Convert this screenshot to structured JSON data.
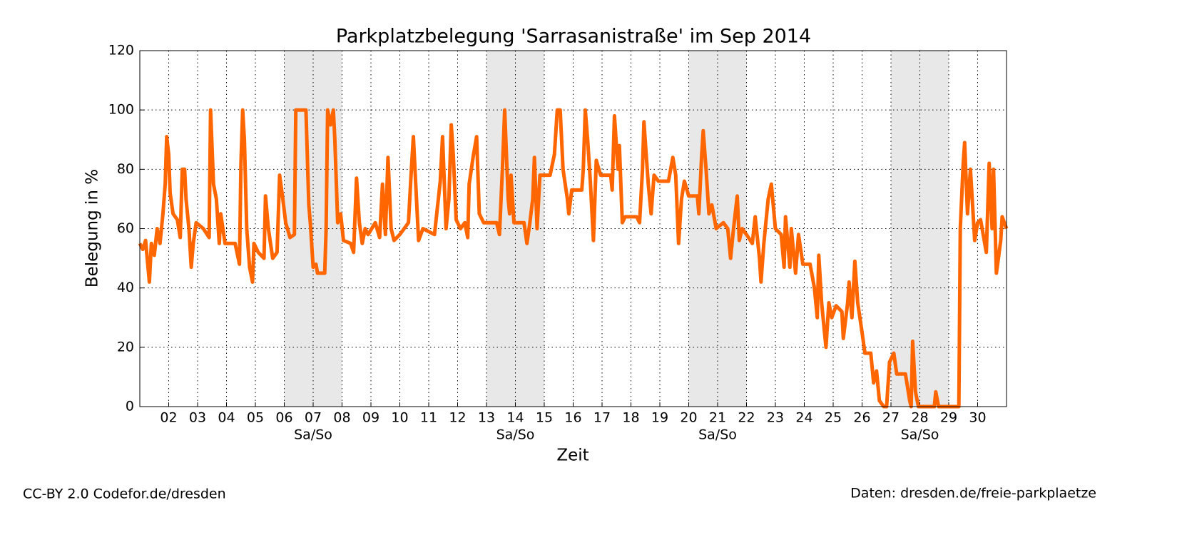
{
  "chart_data": {
    "type": "line",
    "title": "Parkplatzbelegung 'Sarrasanistraße' im Sep 2014",
    "xlabel": "Zeit",
    "ylabel": "Belegung in %",
    "color": "#ff6600",
    "grid": true,
    "xlim": [
      1,
      31
    ],
    "ylim": [
      0,
      120
    ],
    "yticks": [
      0,
      20,
      40,
      60,
      80,
      100,
      120
    ],
    "xticks": [
      {
        "value": 2,
        "label": "02"
      },
      {
        "value": 3,
        "label": "03"
      },
      {
        "value": 4,
        "label": "04"
      },
      {
        "value": 5,
        "label": "05"
      },
      {
        "value": 6,
        "label": "06"
      },
      {
        "value": 7,
        "label": "07"
      },
      {
        "value": 8,
        "label": "08"
      },
      {
        "value": 9,
        "label": "09"
      },
      10,
      11,
      12,
      13,
      14,
      15,
      16,
      17,
      18,
      19,
      20,
      21,
      22,
      23,
      24,
      25,
      26,
      27,
      28,
      29,
      30
    ],
    "weekend_bands": [
      {
        "start": 6,
        "end": 8,
        "label": "Sa/So"
      },
      {
        "start": 13,
        "end": 15,
        "label": "Sa/So"
      },
      {
        "start": 20,
        "end": 22,
        "label": "Sa/So"
      },
      {
        "start": 27,
        "end": 29,
        "label": "Sa/So"
      }
    ],
    "x": [
      1.0,
      1.1,
      1.2,
      1.33,
      1.4,
      1.5,
      1.6,
      1.7,
      1.8,
      1.88,
      1.93,
      2.0,
      2.05,
      2.15,
      2.3,
      2.4,
      2.47,
      2.55,
      2.6,
      2.7,
      2.78,
      2.85,
      2.95,
      3.2,
      3.4,
      3.45,
      3.55,
      3.65,
      3.75,
      3.8,
      3.95,
      4.3,
      4.45,
      4.5,
      4.56,
      4.62,
      4.7,
      4.8,
      4.9,
      4.95,
      5.1,
      5.3,
      5.35,
      5.45,
      5.6,
      5.75,
      5.84,
      5.95,
      6.05,
      6.2,
      6.35,
      6.4,
      6.75,
      6.85,
      6.9,
      7.0,
      7.1,
      7.15,
      7.4,
      7.45,
      7.5,
      7.6,
      7.7,
      7.75,
      7.85,
      7.95,
      8.05,
      8.3,
      8.4,
      8.5,
      8.6,
      8.7,
      8.8,
      8.9,
      9.15,
      9.3,
      9.4,
      9.5,
      9.59,
      9.7,
      9.8,
      10.0,
      10.3,
      10.4,
      10.47,
      10.55,
      10.65,
      10.8,
      11.2,
      11.4,
      11.48,
      11.6,
      11.7,
      11.78,
      11.85,
      11.95,
      12.1,
      12.25,
      12.35,
      12.4,
      12.55,
      12.66,
      12.75,
      12.9,
      13.35,
      13.45,
      13.55,
      13.63,
      13.75,
      13.8,
      13.85,
      13.95,
      14.3,
      14.4,
      14.5,
      14.6,
      14.66,
      14.75,
      14.85,
      15.2,
      15.35,
      15.45,
      15.55,
      15.65,
      15.8,
      15.85,
      15.95,
      16.3,
      16.35,
      16.42,
      16.5,
      16.6,
      16.7,
      16.8,
      16.95,
      17.3,
      17.35,
      17.43,
      17.55,
      17.6,
      17.7,
      17.8,
      18.2,
      18.3,
      18.4,
      18.45,
      18.6,
      18.7,
      18.8,
      18.95,
      19.3,
      19.45,
      19.55,
      19.65,
      19.75,
      19.85,
      20.0,
      20.3,
      20.35,
      20.45,
      20.5,
      20.6,
      20.7,
      20.8,
      20.95,
      21.2,
      21.35,
      21.45,
      21.55,
      21.68,
      21.75,
      21.85,
      22.0,
      22.2,
      22.3,
      22.45,
      22.5,
      22.6,
      22.75,
      22.86,
      23.0,
      23.2,
      23.3,
      23.35,
      23.5,
      23.55,
      23.7,
      23.8,
      23.95,
      24.2,
      24.35,
      24.45,
      24.5,
      24.6,
      24.75,
      24.85,
      24.95,
      25.1,
      25.3,
      25.35,
      25.5,
      25.55,
      25.65,
      25.75,
      25.85,
      26.0,
      26.1,
      26.3,
      26.4,
      26.5,
      26.6,
      26.75,
      26.85,
      26.95,
      27.1,
      27.2,
      27.5,
      27.65,
      27.7,
      27.75,
      27.85,
      27.95,
      28.5,
      28.55,
      28.65,
      29.35,
      29.4,
      29.5,
      29.55,
      29.65,
      29.75,
      29.9,
      30.0,
      30.1,
      30.3,
      30.4,
      30.5,
      30.55,
      30.65,
      30.8,
      30.85,
      31.0
    ],
    "values": [
      55,
      53,
      56,
      42,
      55,
      51,
      60,
      55,
      65,
      75,
      91,
      85,
      72,
      65,
      63,
      57,
      80,
      80,
      70,
      60,
      47,
      55,
      62,
      60,
      57,
      100,
      75,
      70,
      55,
      65,
      55,
      55,
      48,
      82,
      100,
      90,
      60,
      47,
      42,
      55,
      52,
      50,
      71,
      60,
      50,
      52,
      78,
      70,
      62,
      57,
      58,
      100,
      100,
      68,
      62,
      47,
      48,
      45,
      45,
      60,
      100,
      95,
      100,
      90,
      62,
      65,
      56,
      55,
      52,
      77,
      62,
      55,
      60,
      58,
      62,
      57,
      75,
      58,
      84,
      60,
      56,
      58,
      62,
      80,
      91,
      75,
      56,
      60,
      58,
      76,
      91,
      60,
      70,
      95,
      85,
      63,
      60,
      62,
      57,
      75,
      85,
      91,
      65,
      62,
      62,
      58,
      80,
      100,
      70,
      65,
      78,
      62,
      62,
      55,
      62,
      70,
      84,
      60,
      78,
      78,
      85,
      100,
      100,
      80,
      70,
      65,
      73,
      73,
      80,
      100,
      90,
      75,
      56,
      83,
      78,
      78,
      73,
      98,
      80,
      88,
      62,
      64,
      64,
      62,
      80,
      96,
      75,
      65,
      78,
      76,
      76,
      84,
      78,
      55,
      70,
      76,
      71,
      71,
      65,
      85,
      93,
      80,
      65,
      68,
      60,
      62,
      60,
      50,
      60,
      71,
      56,
      60,
      58,
      55,
      64,
      50,
      42,
      55,
      70,
      75,
      60,
      58,
      47,
      64,
      47,
      60,
      45,
      58,
      48,
      48,
      40,
      30,
      51,
      35,
      20,
      35,
      30,
      34,
      32,
      23,
      35,
      42,
      30,
      49,
      35,
      25,
      18,
      18,
      8,
      12,
      2,
      0,
      0,
      15,
      18,
      11,
      11,
      2,
      0,
      22,
      5,
      0,
      0,
      5,
      0,
      0,
      60,
      82,
      89,
      65,
      80,
      56,
      62,
      63,
      52,
      82,
      60,
      80,
      45,
      56,
      64,
      60
    ],
    "footer_left": "CC-BY 2.0 Codefor.de/dresden",
    "footer_right": "Daten: dresden.de/freie-parkplaetze"
  }
}
